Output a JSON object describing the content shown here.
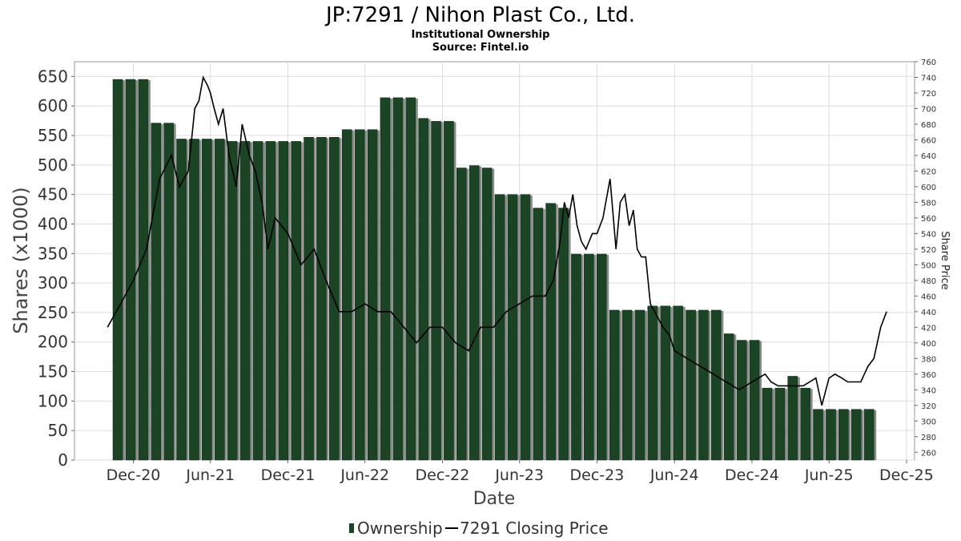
{
  "header": {
    "title": "JP:7291 / Nihon Plast Co., Ltd.",
    "subtitle": "Institutional Ownership",
    "source": "Source: Fintel.io"
  },
  "legend": {
    "ownership_label": "Ownership",
    "price_label": "7291 Closing Price"
  },
  "colors": {
    "bar": "#1a4424",
    "bar_shadow": "#8a8a8a",
    "price_line": "#000000",
    "grid": "#dddddd"
  },
  "chart_data": {
    "type": "bar",
    "xlabel": "Date",
    "ylabel": "Shares (x1000)",
    "y2label": "Share Price",
    "ylim": [
      0,
      675
    ],
    "y2lim": [
      250,
      760
    ],
    "yticks": [
      0,
      50,
      100,
      150,
      200,
      250,
      300,
      350,
      400,
      450,
      500,
      550,
      600,
      650
    ],
    "y2ticks": [
      260,
      280,
      300,
      320,
      340,
      360,
      380,
      400,
      420,
      440,
      460,
      480,
      500,
      520,
      540,
      560,
      580,
      600,
      620,
      640,
      660,
      680,
      700,
      720,
      740,
      760
    ],
    "xlim": [
      "2020-07-15",
      "2025-12-20"
    ],
    "xticks": [
      {
        "date": "2020-12-01",
        "label": "Dec-20"
      },
      {
        "date": "2021-06-01",
        "label": "Jun-21"
      },
      {
        "date": "2021-12-01",
        "label": "Dec-21"
      },
      {
        "date": "2022-06-01",
        "label": "Jun-22"
      },
      {
        "date": "2022-12-01",
        "label": "Dec-22"
      },
      {
        "date": "2023-06-01",
        "label": "Jun-23"
      },
      {
        "date": "2023-12-01",
        "label": "Dec-23"
      },
      {
        "date": "2024-06-01",
        "label": "Jun-24"
      },
      {
        "date": "2024-12-01",
        "label": "Dec-24"
      },
      {
        "date": "2025-06-01",
        "label": "Jun-25"
      },
      {
        "date": "2025-12-01",
        "label": "Dec-25"
      }
    ],
    "grid": true,
    "legend_position": "bottom-center",
    "series": [
      {
        "name": "Ownership",
        "type": "bar",
        "values": [
          645,
          645,
          645,
          571,
          571,
          544,
          544,
          544,
          544,
          540,
          540,
          540,
          540,
          540,
          540,
          547,
          547,
          547,
          560,
          560,
          560,
          614,
          614,
          614,
          579,
          574,
          574,
          495,
          499,
          495,
          450,
          450,
          450,
          427,
          435,
          427,
          349,
          349,
          349,
          254,
          254,
          254,
          261,
          261,
          261,
          254,
          254,
          254,
          214,
          203,
          203,
          122,
          122,
          142,
          122,
          86,
          86,
          86,
          86,
          86
        ]
      },
      {
        "name": "7291 Closing Price",
        "type": "line",
        "x": [
          "2020-10-01",
          "2020-11-01",
          "2020-12-01",
          "2021-01-01",
          "2021-02-01",
          "2021-03-01",
          "2021-03-20",
          "2021-04-10",
          "2021-04-25",
          "2021-05-05",
          "2021-05-15",
          "2021-05-25",
          "2021-06-01",
          "2021-06-10",
          "2021-06-20",
          "2021-07-01",
          "2021-07-15",
          "2021-08-01",
          "2021-08-15",
          "2021-09-01",
          "2021-09-15",
          "2021-10-01",
          "2021-10-15",
          "2021-11-01",
          "2021-12-01",
          "2022-01-01",
          "2022-02-01",
          "2022-03-01",
          "2022-04-01",
          "2022-05-01",
          "2022-06-01",
          "2022-07-01",
          "2022-08-01",
          "2022-09-01",
          "2022-10-01",
          "2022-11-01",
          "2022-12-01",
          "2023-01-01",
          "2023-02-01",
          "2023-03-01",
          "2023-04-01",
          "2023-05-01",
          "2023-06-01",
          "2023-07-01",
          "2023-08-01",
          "2023-08-20",
          "2023-09-05",
          "2023-09-15",
          "2023-09-25",
          "2023-10-05",
          "2023-10-15",
          "2023-10-25",
          "2023-11-05",
          "2023-11-20",
          "2023-12-01",
          "2023-12-15",
          "2024-01-01",
          "2024-01-15",
          "2024-01-25",
          "2024-02-05",
          "2024-02-15",
          "2024-02-25",
          "2024-03-05",
          "2024-03-15",
          "2024-03-25",
          "2024-04-05",
          "2024-04-15",
          "2024-04-25",
          "2024-05-05",
          "2024-05-20",
          "2024-06-01",
          "2024-07-01",
          "2024-08-01",
          "2024-09-01",
          "2024-10-01",
          "2024-11-01",
          "2024-12-01",
          "2025-01-01",
          "2025-01-15",
          "2025-02-01",
          "2025-03-01",
          "2025-04-01",
          "2025-05-01",
          "2025-05-15",
          "2025-06-01",
          "2025-06-15",
          "2025-07-01",
          "2025-07-15",
          "2025-08-01",
          "2025-08-15",
          "2025-09-01",
          "2025-09-15",
          "2025-10-01",
          "2025-10-15"
        ],
        "values": [
          420,
          450,
          480,
          520,
          610,
          640,
          600,
          620,
          700,
          710,
          740,
          730,
          720,
          700,
          680,
          700,
          640,
          600,
          680,
          640,
          620,
          580,
          520,
          560,
          540,
          500,
          520,
          480,
          440,
          440,
          450,
          440,
          440,
          420,
          400,
          420,
          420,
          400,
          390,
          420,
          420,
          440,
          450,
          460,
          460,
          480,
          530,
          580,
          560,
          590,
          550,
          530,
          520,
          540,
          540,
          560,
          610,
          520,
          580,
          590,
          550,
          570,
          520,
          510,
          510,
          450,
          440,
          430,
          420,
          410,
          390,
          380,
          370,
          360,
          350,
          340,
          350,
          360,
          350,
          345,
          345,
          345,
          355,
          320,
          355,
          360,
          355,
          350,
          350,
          350,
          370,
          380,
          420,
          440
        ]
      }
    ]
  }
}
